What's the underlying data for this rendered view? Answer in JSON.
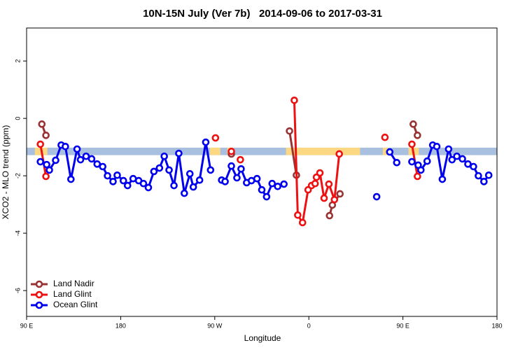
{
  "chart_data": {
    "type": "line",
    "title": "10N-15N July (Ver 7b)   2014-09-06 to 2017-03-31",
    "x_label": "Longitude",
    "y_label": "XCO2 - MLO trend (ppm)",
    "xlim": [
      90,
      540
    ],
    "xticks": [
      {
        "value": 90,
        "label": "90 E"
      },
      {
        "value": 180,
        "label": "180"
      },
      {
        "value": 270,
        "label": "90 W"
      },
      {
        "value": 360,
        "label": "0"
      },
      {
        "value": 450,
        "label": "90 E"
      },
      {
        "value": 540,
        "label": "180"
      }
    ],
    "ylim": [
      -6.9,
      3.15
    ],
    "yticks": [
      -6,
      -4,
      -2,
      0,
      2
    ],
    "band": {
      "ylim": [
        -1.28,
        -1.02
      ],
      "color": "#a9bfe0",
      "land_color": "#fcd882",
      "land_x": [
        [
          97.9,
          109.9
        ],
        [
          265.4,
          275.3
        ],
        [
          282.0,
          287.9
        ],
        [
          338.2,
          409.0
        ],
        [
          430.8,
          435.4
        ],
        [
          455.3,
          465.2
        ]
      ]
    },
    "legend": "bottom-left",
    "series": [
      {
        "name": "Land Nadir",
        "color": "#993333",
        "x": [
          104.6,
          108.5,
          null,
          285.9,
          null,
          341.5,
          348.1,
          null,
          379.8,
          382.5,
          389.8,
          null,
          459.9,
          463.9
        ],
        "values": [
          -0.2,
          -0.59,
          null,
          -1.24,
          null,
          -0.44,
          -1.98,
          null,
          -3.39,
          -3.02,
          -2.63,
          null,
          -0.2,
          -0.59
        ]
      },
      {
        "name": "Land Glint",
        "color": "#ee1111",
        "x": [
          103.2,
          108.5,
          null,
          270.7,
          null,
          285.9,
          null,
          294.5,
          null,
          346.1,
          349.4,
          354.0,
          359.3,
          362.6,
          366.0,
          367.3,
          370.6,
          374.6,
          379.2,
          384.5,
          389.1,
          null,
          432.8,
          null,
          458.6,
          463.9
        ],
        "values": [
          -0.9,
          -2.02,
          null,
          -0.68,
          null,
          -1.15,
          null,
          -1.44,
          null,
          0.63,
          -3.37,
          -3.63,
          -2.49,
          -2.34,
          -2.27,
          -2.05,
          -1.9,
          -2.78,
          -2.29,
          -2.83,
          -1.24,
          null,
          -0.66,
          null,
          -0.9,
          -2.02
        ]
      },
      {
        "name": "Ocean Glint",
        "color": "#0000ee",
        "x": [
          103.2,
          109.2,
          111.8,
          117.8,
          123.1,
          127.1,
          132.4,
          138.3,
          141.6,
          146.9,
          152.2,
          157.5,
          162.8,
          167.4,
          172.7,
          176.7,
          182.6,
          186.6,
          191.9,
          197.2,
          201.8,
          206.5,
          211.8,
          217.1,
          221.7,
          226.3,
          231.0,
          235.6,
          240.9,
          246.2,
          249.5,
          255.5,
          261.4,
          266.0,
          null,
          276.6,
          279.9,
          285.9,
          291.2,
          295.2,
          300.5,
          305.1,
          310.4,
          315.0,
          319.6,
          324.9,
          330.2,
          336.2,
          null,
          424.9,
          null,
          437.4,
          444.1,
          null,
          458.6,
          464.6,
          467.2,
          473.2,
          478.5,
          482.4,
          487.7,
          493.7,
          497.0,
          501.6,
          506.9,
          512.2,
          517.5,
          522.2,
          527.5,
          532.1
        ],
        "values": [
          -1.51,
          -1.61,
          -1.8,
          -1.46,
          -0.93,
          -0.98,
          -2.12,
          -1.07,
          -1.44,
          -1.32,
          -1.41,
          -1.59,
          -1.68,
          -2.0,
          -2.2,
          -1.98,
          -2.17,
          -2.34,
          -2.1,
          -2.17,
          -2.27,
          -2.41,
          -1.85,
          -1.73,
          -1.32,
          -1.8,
          -2.34,
          -1.22,
          -2.61,
          -1.93,
          -2.39,
          -2.15,
          -0.83,
          -1.8,
          null,
          -2.15,
          -2.2,
          -1.66,
          -2.07,
          -1.76,
          -2.24,
          -2.17,
          -2.1,
          -2.49,
          -2.73,
          -2.27,
          -2.37,
          -2.29,
          null,
          -2.73,
          null,
          -1.17,
          -1.54,
          null,
          -1.51,
          -1.63,
          -1.8,
          -1.49,
          -0.93,
          -0.98,
          -2.12,
          -1.07,
          -1.44,
          -1.32,
          -1.41,
          -1.59,
          -1.68,
          -2.0,
          -2.2,
          -1.98
        ]
      }
    ]
  }
}
